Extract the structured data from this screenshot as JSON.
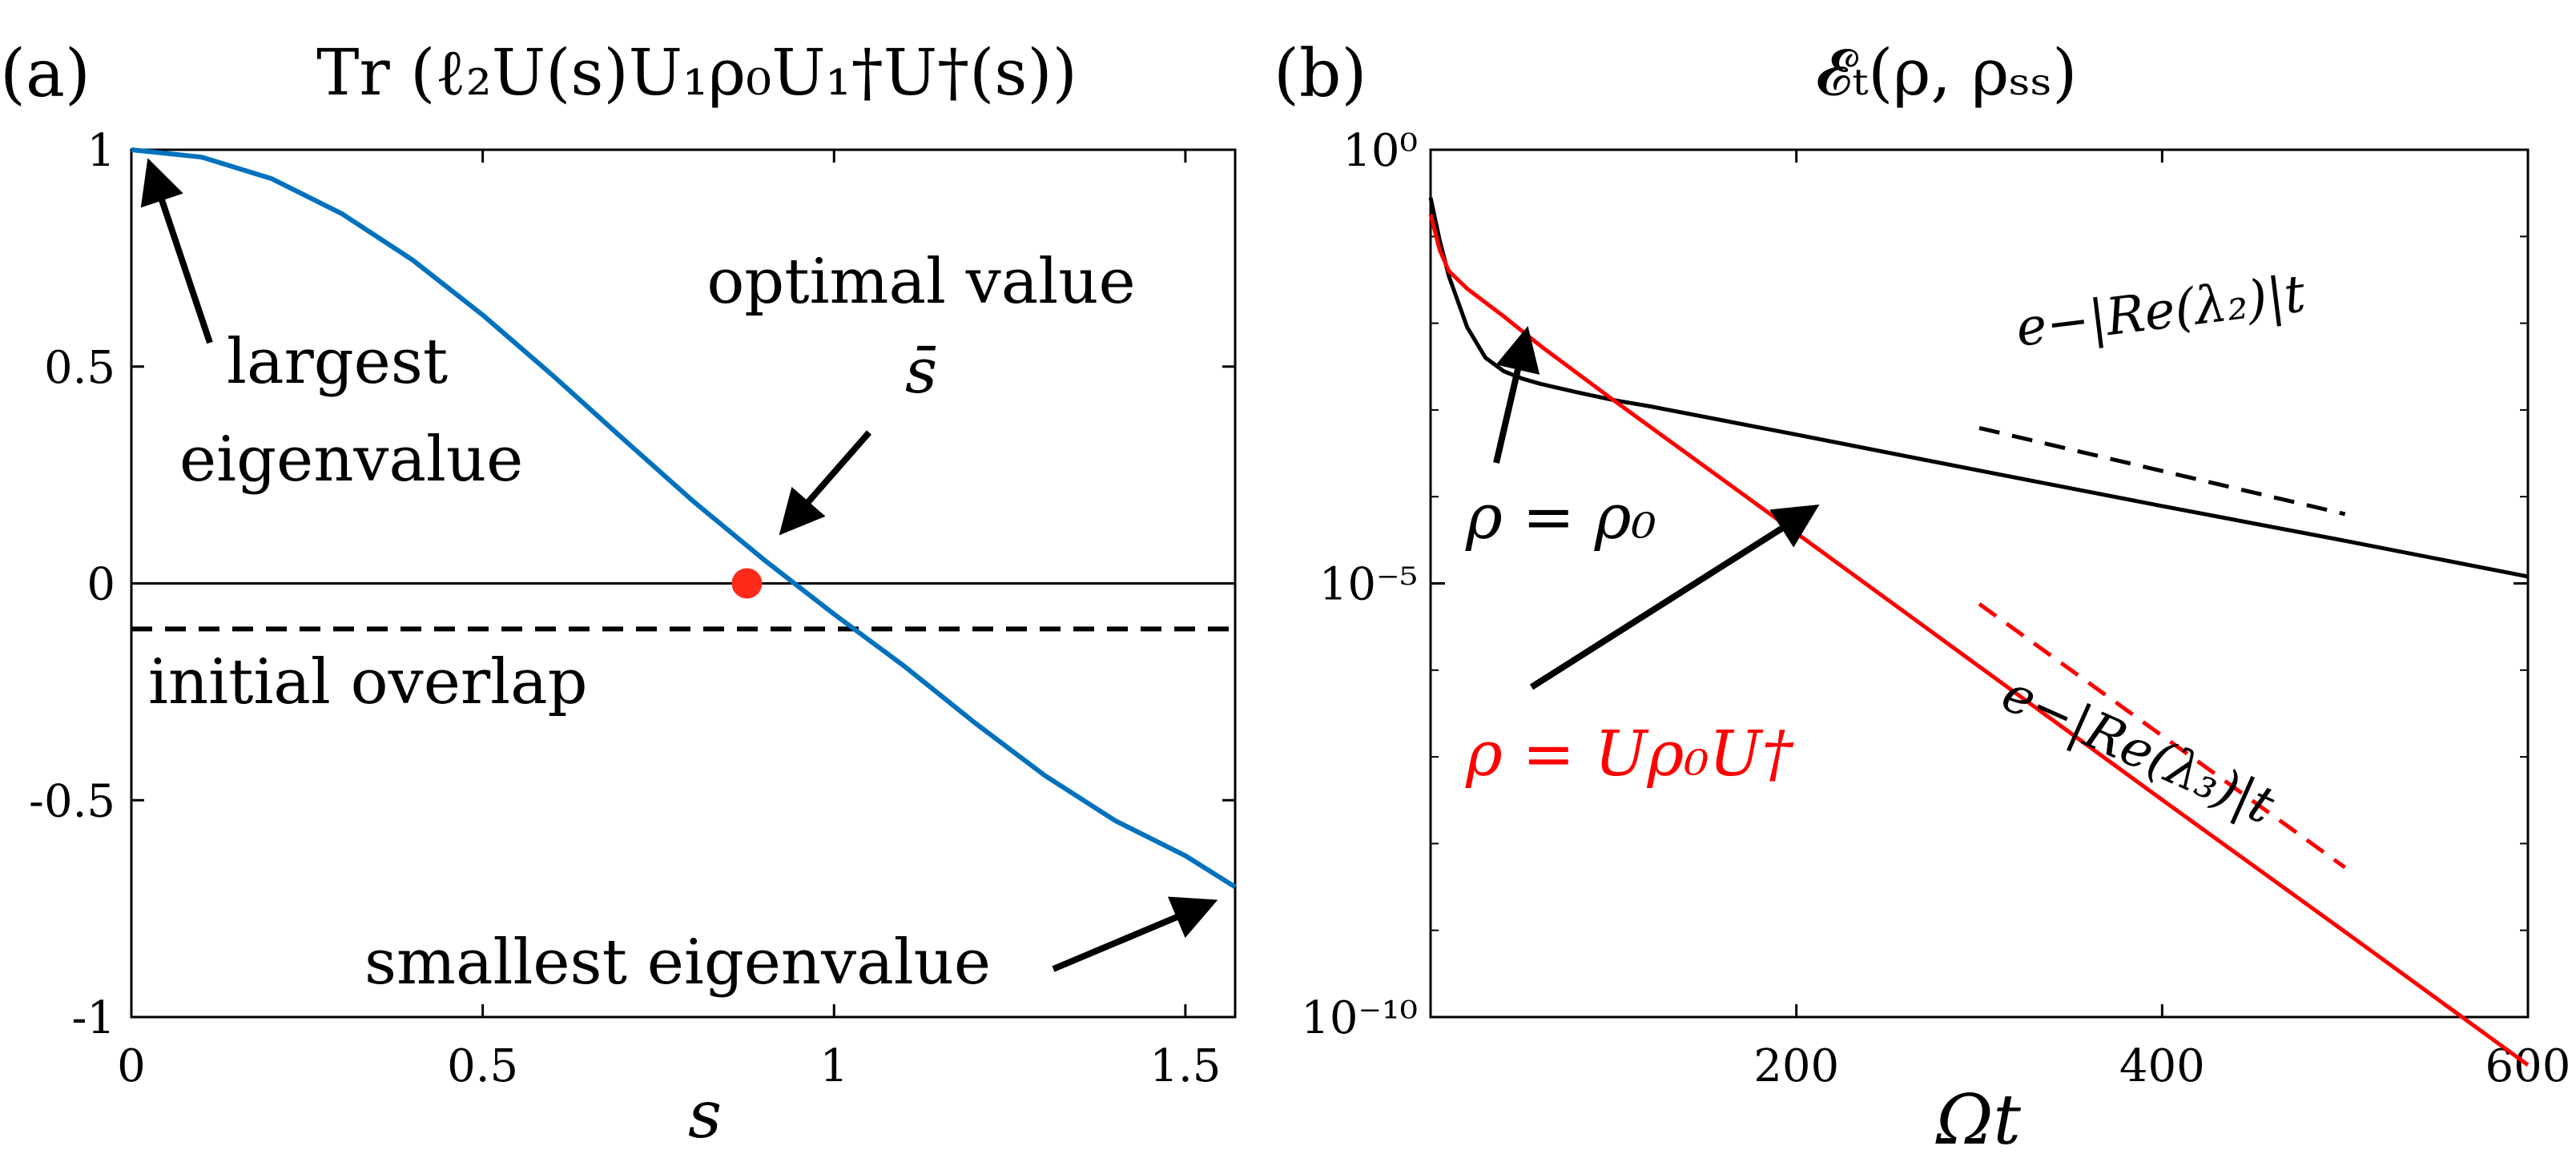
{
  "panels": [
    {
      "label": "(a)",
      "title": "Tr (ℓ₂U(s)U₁ρ₀U₁†U†(s))",
      "chart_data": {
        "type": "line",
        "title": "Tr (ℓ₂U(s)U₁ρ₀U₁†U†(s))",
        "xlabel": "s",
        "ylabel": "",
        "xlim": [
          0,
          1.5708
        ],
        "ylim": [
          -1,
          1
        ],
        "x_ticks": [
          "0",
          "0.5",
          "1",
          "1.5"
        ],
        "y_ticks": [
          "1",
          "0.5",
          "0",
          "-0.5",
          "-1"
        ],
        "grid": false,
        "series": [
          {
            "color": "#0072bd",
            "x": [
              0,
              0.1,
              0.2,
              0.3,
              0.4,
              0.5,
              0.6,
              0.7,
              0.8,
              0.9,
              1.0,
              1.1,
              1.2,
              1.3,
              1.4,
              1.5,
              1.5708
            ],
            "y": [
              1.0,
              0.983,
              0.933,
              0.852,
              0.746,
              0.619,
              0.479,
              0.333,
              0.189,
              0.055,
              -0.071,
              -0.191,
              -0.321,
              -0.443,
              -0.547,
              -0.628,
              -0.7
            ]
          }
        ],
        "reference_lines": [
          {
            "y": 0,
            "style": "solid",
            "color": "#000000"
          },
          {
            "y": -0.105,
            "style": "dashed",
            "color": "#000000"
          }
        ],
        "highlight_point": {
          "x": 0.876,
          "y": 0,
          "color": "#ff2a1a"
        }
      },
      "annotations": {
        "largest_line1": "largest",
        "largest_line2": "eigenvalue",
        "optimal_line1": "optimal value",
        "optimal_line2": "s̄",
        "initial_overlap": "initial overlap",
        "smallest": "smallest eigenvalue"
      }
    },
    {
      "label": "(b)",
      "title": "𝓔ₜ(ρ, ρₛₛ)",
      "chart_data": {
        "type": "line",
        "title": "𝓔ₜ(ρ, ρₛₛ)",
        "xlabel": "Ωt",
        "ylabel": "",
        "xlim": [
          0,
          600
        ],
        "ylim": [
          1e-10,
          1
        ],
        "yscale": "log",
        "x_ticks": [
          "200",
          "400",
          "600"
        ],
        "y_ticks": [
          "10⁰",
          "10⁻⁵",
          "10⁻¹⁰"
        ],
        "grid": false,
        "series": [
          {
            "name": "ρ = ρ₀",
            "color": "#000000",
            "x": [
              0,
              5,
              10,
              20,
              30,
              40,
              50,
              60,
              80,
              100,
              120,
              200,
              300,
              400,
              500,
              600
            ],
            "y": [
              0.28,
              0.09,
              0.035,
              0.009,
              0.004,
              0.0028,
              0.0023,
              0.002,
              0.0016,
              0.0013,
              0.0011,
              0.00052,
              0.0002,
              7.8e-05,
              3.1e-05,
              1.2e-05
            ]
          },
          {
            "name": "ρ = Uρ₀U†",
            "color": "#ff0000",
            "x": [
              0,
              5,
              10,
              20,
              40,
              60,
              100,
              200,
              300,
              400,
              500,
              600
            ],
            "y": [
              0.18,
              0.07,
              0.04,
              0.025,
              0.012,
              0.0055,
              0.0013,
              3.8e-05,
              1.1e-06,
              3.2e-08,
              9.6e-10,
              2.8e-11
            ]
          }
        ],
        "guide_lines": [
          {
            "label": "e^{−|Re(λ₂)|t}",
            "color": "#000000",
            "style": "dashed",
            "x": [
              300,
              500
            ],
            "y": [
              0.00062,
              6.3e-05
            ]
          },
          {
            "label": "e^{−|Re(λ₃)|t}",
            "color": "#ff0000",
            "style": "dashed",
            "x": [
              300,
              500
            ],
            "y": [
              5.8e-06,
              5.3e-09
            ]
          }
        ]
      },
      "annotations": {
        "rho_rho0": "ρ = ρ₀",
        "rho_urho0u": "ρ = Uρ₀U†",
        "lambda2": "e−|Re(λ₂)|t",
        "lambda3": "e−|Re(λ₃)|t"
      }
    }
  ]
}
